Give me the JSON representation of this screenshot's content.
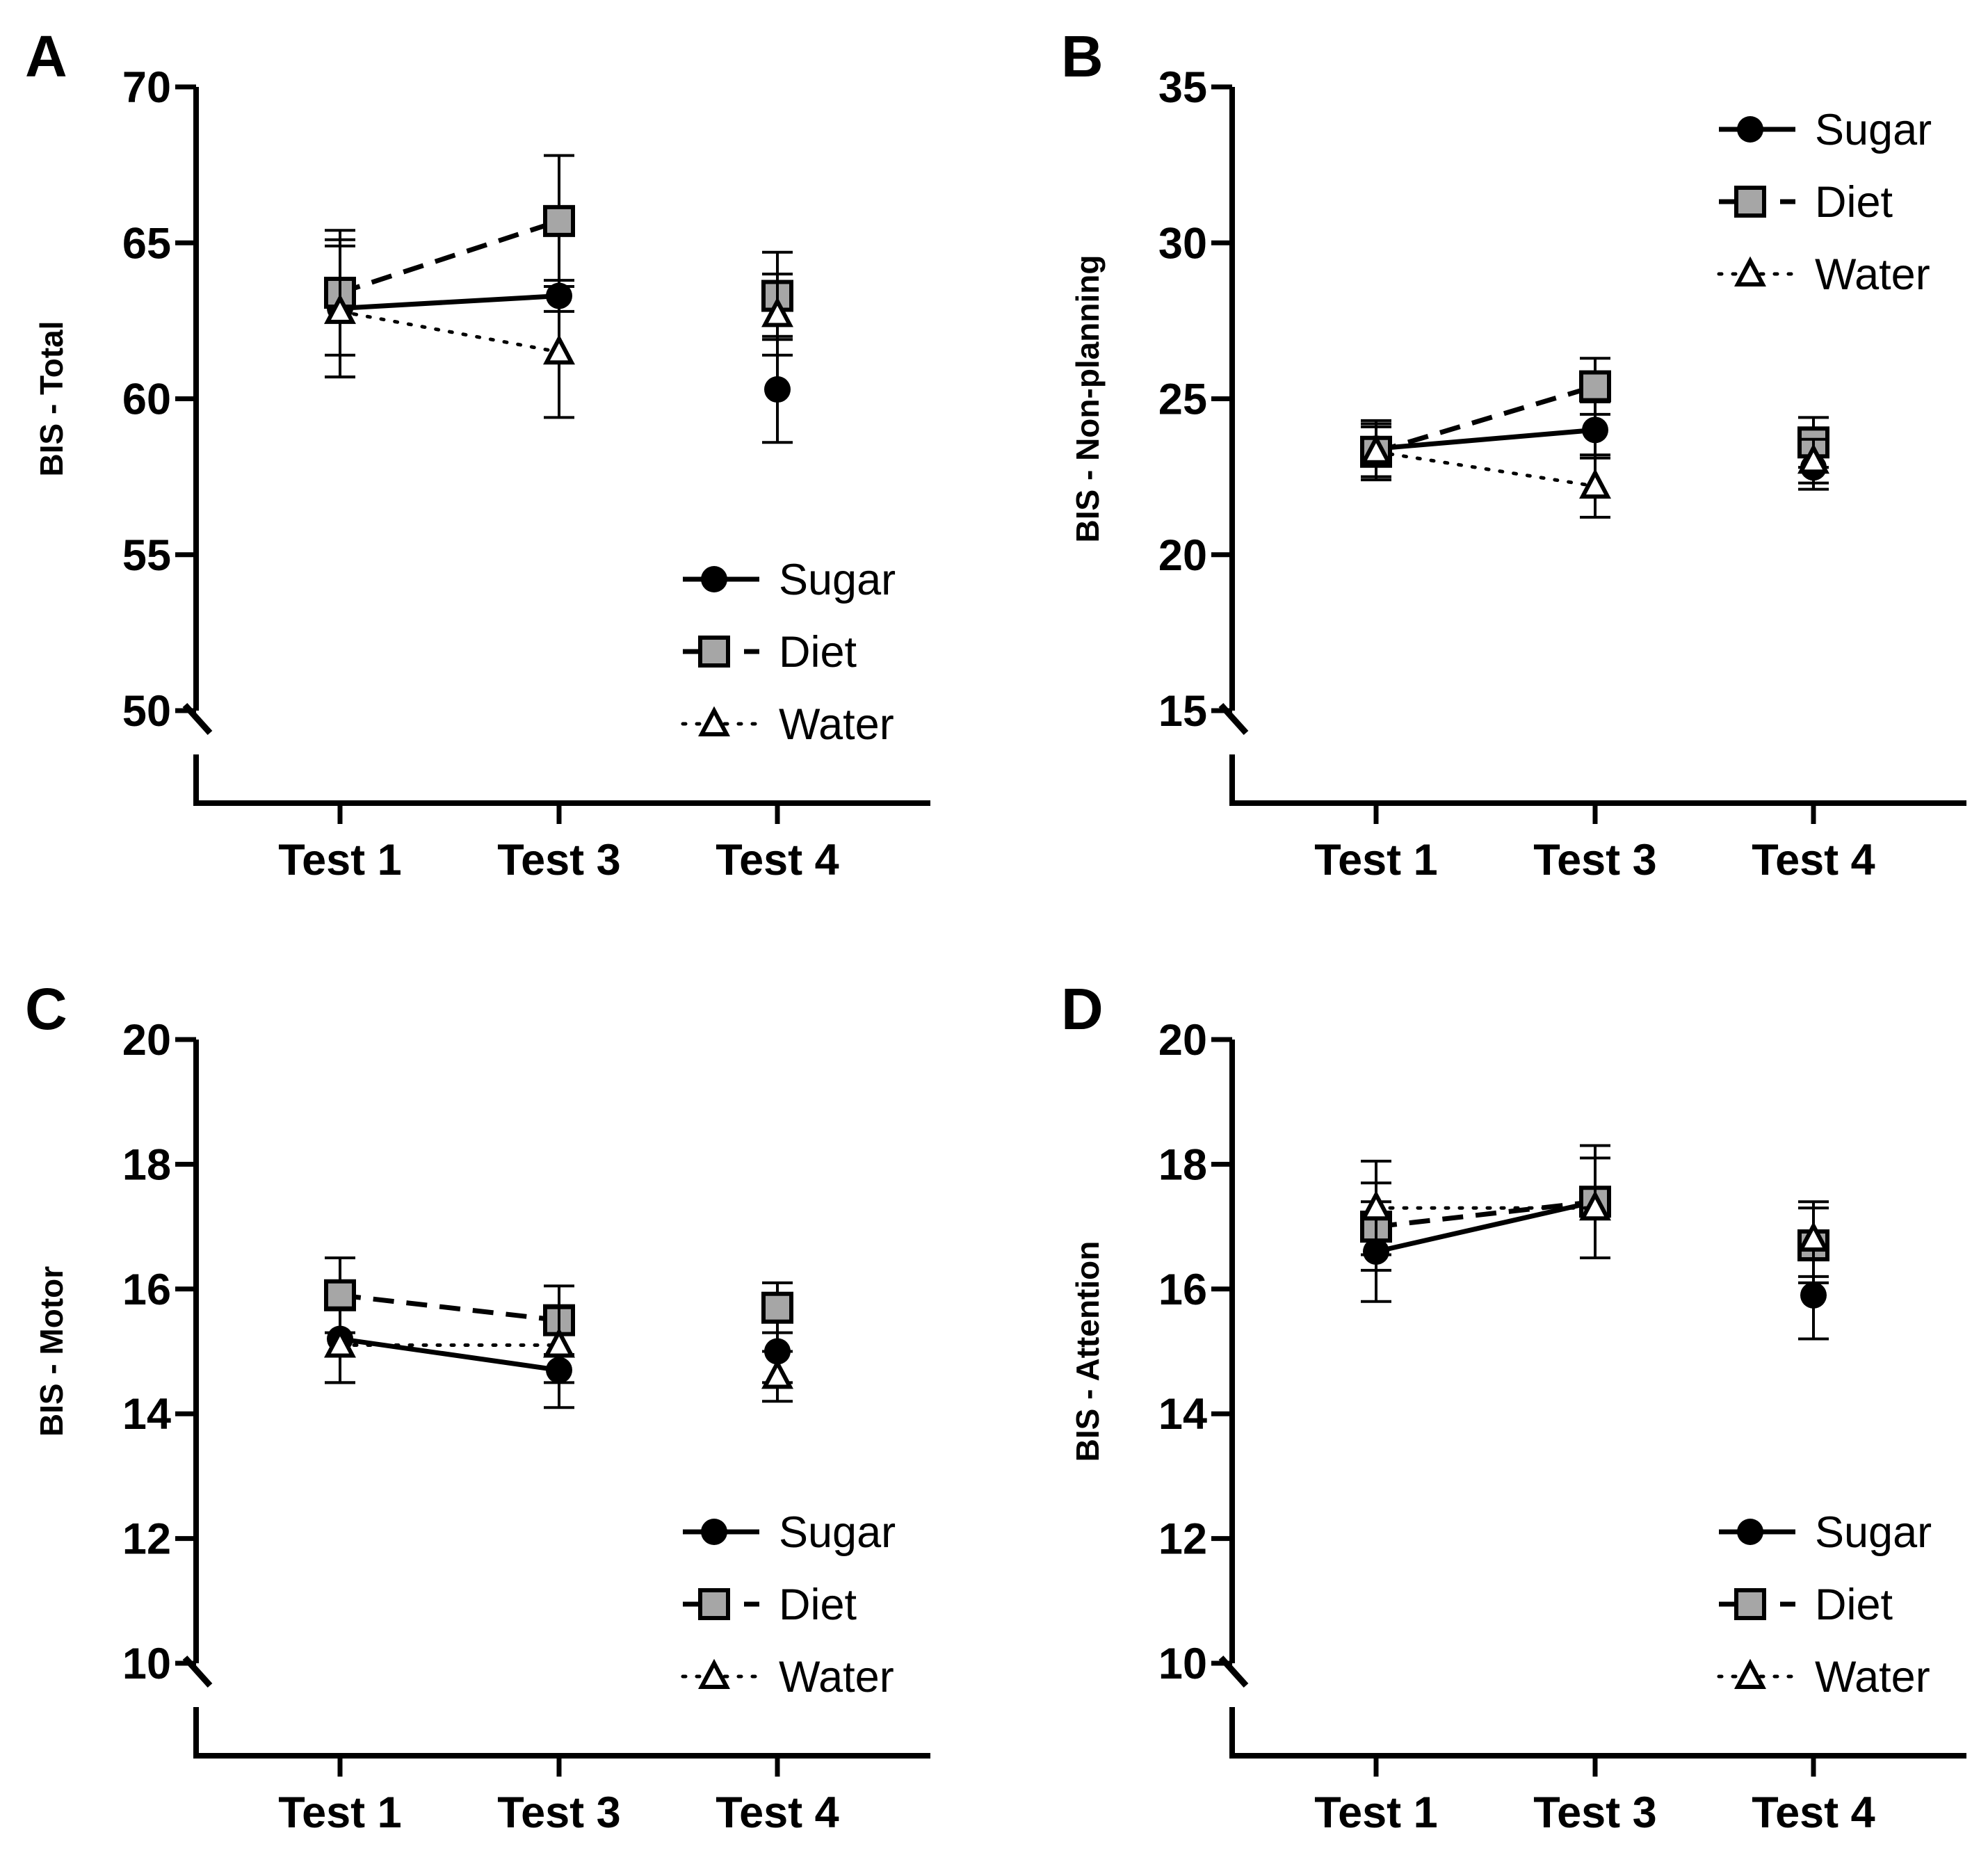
{
  "chart_data": [
    {
      "panel": "A",
      "type": "line",
      "ylabel": "BIS - Total",
      "categories": [
        "Test 1",
        "Test 3",
        "Test 4"
      ],
      "ylim": [
        50,
        70
      ],
      "yticks": [
        50,
        55,
        60,
        65,
        70
      ],
      "legend_position": "bottom-right",
      "series": [
        {
          "name": "Sugar",
          "marker": "circle",
          "line": "solid",
          "connected_points": 2,
          "values": [
            62.9,
            63.3,
            60.3
          ],
          "errors": [
            2.2,
            0.5,
            1.7
          ]
        },
        {
          "name": "Diet",
          "marker": "square",
          "line": "dashed",
          "connected_points": 2,
          "values": [
            63.4,
            65.7,
            63.3
          ],
          "errors": [
            2.0,
            2.1,
            1.4
          ]
        },
        {
          "name": "Water",
          "marker": "triangle",
          "line": "dotted",
          "connected_points": 2,
          "values": [
            62.8,
            61.5,
            62.7
          ],
          "errors": [
            2.1,
            2.1,
            1.3
          ]
        }
      ]
    },
    {
      "panel": "B",
      "type": "line",
      "ylabel": "BIS - Non-planning",
      "categories": [
        "Test 1",
        "Test 3",
        "Test 4"
      ],
      "ylim": [
        15,
        35
      ],
      "yticks": [
        15,
        20,
        25,
        30,
        35
      ],
      "legend_position": "top-right",
      "series": [
        {
          "name": "Sugar",
          "marker": "circle",
          "line": "solid",
          "connected_points": 2,
          "values": [
            23.4,
            24.0,
            22.8
          ],
          "errors": [
            0.9,
            0.9,
            0.7
          ]
        },
        {
          "name": "Diet",
          "marker": "square",
          "line": "dashed",
          "connected_points": 2,
          "values": [
            23.3,
            25.4,
            23.6
          ],
          "errors": [
            0.9,
            0.9,
            0.8
          ]
        },
        {
          "name": "Water",
          "marker": "triangle",
          "line": "dotted",
          "connected_points": 2,
          "values": [
            23.3,
            22.2,
            23.0
          ],
          "errors": [
            0.8,
            1.0,
            0.7
          ]
        }
      ]
    },
    {
      "panel": "C",
      "type": "line",
      "ylabel": "BIS - Motor",
      "categories": [
        "Test 1",
        "Test 3",
        "Test 4"
      ],
      "ylim": [
        10,
        20
      ],
      "yticks": [
        10,
        12,
        14,
        16,
        18,
        20
      ],
      "legend_position": "bottom-right",
      "series": [
        {
          "name": "Sugar",
          "marker": "circle",
          "line": "solid",
          "connected_points": 2,
          "values": [
            15.2,
            14.7,
            15.0
          ],
          "errors": [
            0.7,
            0.6,
            0.5
          ]
        },
        {
          "name": "Diet",
          "marker": "square",
          "line": "dashed",
          "connected_points": 2,
          "values": [
            15.9,
            15.5,
            15.7
          ],
          "errors": [
            0.6,
            0.55,
            0.4
          ]
        },
        {
          "name": "Water",
          "marker": "triangle",
          "line": "dotted",
          "connected_points": 2,
          "values": [
            15.1,
            15.1,
            14.6
          ],
          "errors": [
            0.6,
            0.6,
            0.4
          ]
        }
      ]
    },
    {
      "panel": "D",
      "type": "line",
      "ylabel": "BIS - Attention",
      "categories": [
        "Test 1",
        "Test 3",
        "Test 4"
      ],
      "ylim": [
        10,
        20
      ],
      "yticks": [
        10,
        12,
        14,
        16,
        18,
        20
      ],
      "legend_position": "bottom-right",
      "series": [
        {
          "name": "Sugar",
          "marker": "circle",
          "line": "solid",
          "connected_points": 2,
          "values": [
            16.6,
            17.4,
            15.9
          ],
          "errors": [
            0.8,
            0.9,
            0.7
          ]
        },
        {
          "name": "Diet",
          "marker": "square",
          "line": "dashed",
          "connected_points": 2,
          "values": [
            17.0,
            17.4,
            16.7
          ],
          "errors": [
            0.7,
            0.9,
            0.6
          ]
        },
        {
          "name": "Water",
          "marker": "triangle",
          "line": "dotted",
          "connected_points": 2,
          "values": [
            17.3,
            17.3,
            16.8
          ],
          "errors": [
            0.75,
            0.8,
            0.6
          ]
        }
      ]
    }
  ]
}
